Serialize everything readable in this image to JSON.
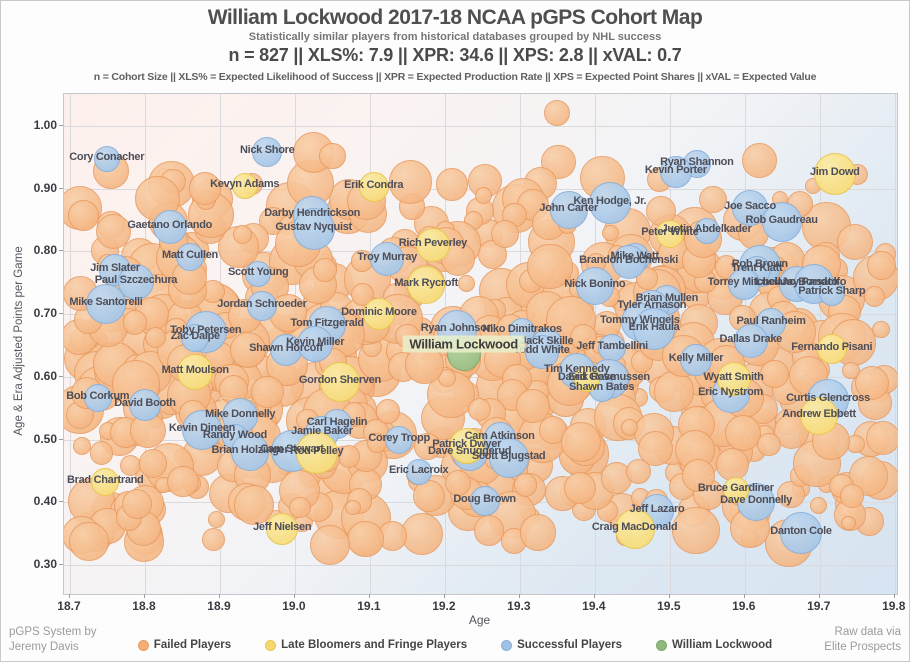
{
  "header": {
    "title": "William Lockwood 2017-18 NCAA pGPS Cohort Map",
    "subtitle": "Statistically similar players from historical databases grouped by NHL success",
    "stats": "n = 827   ||   XLS%: 7.9   ||   XPR: 34.6   ||   XPS: 2.8   ||   xVAL: 0.7",
    "definitions": "n = Cohort Size || XLS% = Expected Likelihood of Success || XPR = Expected Production Rate || XPS = Expected Point Shares || xVAL = Expected Value"
  },
  "footer": {
    "credit_left_1": "pGPS System by",
    "credit_left_2": "Jeremy Davis",
    "credit_right_1": "Raw data via",
    "credit_right_2": "Elite Prospects"
  },
  "colors": {
    "failed": {
      "light": "#f9cfa8",
      "main": "#f3ae77",
      "edge": "#e99c62"
    },
    "late_bloomer": {
      "light": "#fbeba8",
      "main": "#f6d96e",
      "edge": "#e8c64e"
    },
    "successful": {
      "light": "#c3daf0",
      "main": "#9fc2e5",
      "edge": "#8ab0da"
    },
    "subject": {
      "light": "#b4d4a3",
      "main": "#90ba7d",
      "edge": "#7ca96b"
    },
    "grid": "#d9d9de",
    "bg_gradient": [
      "#fdf0ec",
      "#faf3f1",
      "#f2f3f6",
      "#dde8f2",
      "#d7e4f1"
    ]
  },
  "chart_data": {
    "type": "scatter",
    "title": "William Lockwood 2017-18 NCAA pGPS Cohort Map",
    "subtitle": "Statistically similar players from historical databases grouped by NHL success",
    "cohort_stats": {
      "n": 827,
      "XLS_pct": 7.9,
      "XPR": 34.6,
      "XPS": 2.8,
      "xVAL": 0.7
    },
    "xlabel": "Age",
    "ylabel": "Age & Era Adjusted Points per Game",
    "x_ticks": [
      "18.7",
      "18.8",
      "18.9",
      "19.0",
      "19.1",
      "19.2",
      "19.3",
      "19.4",
      "19.5",
      "19.6",
      "19.7",
      "19.8"
    ],
    "y_ticks": [
      "0.30",
      "0.40",
      "0.50",
      "0.60",
      "0.70",
      "0.80",
      "0.90",
      "1.00"
    ],
    "xlim": [
      18.692,
      19.803
    ],
    "ylim": [
      0.254,
      1.051
    ],
    "grid": true,
    "legend_position": "bottom",
    "legend": [
      {
        "label": "Failed Players",
        "category": "failed"
      },
      {
        "label": "Late Bloomers and Fringe Players",
        "category": "late_bloomer"
      },
      {
        "label": "Successful Players",
        "category": "successful"
      },
      {
        "label": "William Lockwood",
        "category": "subject"
      }
    ],
    "point_format": [
      "name",
      "age",
      "adjusted_points_per_game"
    ],
    "series": [
      {
        "name": "Successful Players",
        "category": "successful",
        "points": [
          [
            "Cory Conacher",
            18.749,
            0.947
          ],
          [
            "Nick Shore",
            18.963,
            0.959
          ],
          [
            "Gaetano Orlando",
            18.833,
            0.839
          ],
          [
            "Darby Hendrickson",
            19.023,
            0.858
          ],
          [
            "Gustav Nyquist",
            19.025,
            0.836
          ],
          [
            "Matt Cullen",
            18.86,
            0.791
          ],
          [
            "Jim Slater",
            18.76,
            0.771
          ],
          [
            "Paul Szczechura",
            18.788,
            0.752
          ],
          [
            "Mike Santorelli",
            18.748,
            0.717
          ],
          [
            "Scott Young",
            18.951,
            0.764
          ],
          [
            "Jordan Schroeder",
            18.956,
            0.713
          ],
          [
            "Troy Murray",
            19.123,
            0.788
          ],
          [
            "John Carter",
            19.365,
            0.866
          ],
          [
            "Ken Hodge, Jr.",
            19.42,
            0.877
          ],
          [
            "Ryan Shannon",
            19.536,
            0.939
          ],
          [
            "Kevin Porter",
            19.508,
            0.927
          ],
          [
            "Joe Sacco",
            19.607,
            0.869
          ],
          [
            "Rob Gaudreau",
            19.649,
            0.847
          ],
          [
            "Justin Abdelkader",
            19.549,
            0.833
          ],
          [
            "Mike Watt",
            19.453,
            0.79
          ],
          [
            "Brandon Bochenski",
            19.445,
            0.783
          ],
          [
            "Nick Bonino",
            19.4,
            0.745
          ],
          [
            "Rob Brown",
            19.62,
            0.777
          ],
          [
            "Trent Klatt",
            19.616,
            0.771
          ],
          [
            "Torrey Mitchell",
            19.599,
            0.748
          ],
          [
            "Luciano Borsato",
            19.669,
            0.748
          ],
          [
            "Jay Pandolfo",
            19.692,
            0.748
          ],
          [
            "Patrick Sharp",
            19.716,
            0.734
          ],
          [
            "Brian Mullen",
            19.496,
            0.723
          ],
          [
            "Tyler Arnason",
            19.476,
            0.712
          ],
          [
            "Tom Fitzgerald",
            19.043,
            0.683
          ],
          [
            "Toby Petersen",
            18.881,
            0.672
          ],
          [
            "Zac Dalpe",
            18.867,
            0.662
          ],
          [
            "Shawn Horcoff",
            18.988,
            0.643
          ],
          [
            "Kevin Miller",
            19.027,
            0.653
          ],
          [
            "Ryan Johnson",
            19.216,
            0.675
          ],
          [
            "Niko Dimitrakos",
            19.303,
            0.674
          ],
          [
            "Jack Skille",
            19.336,
            0.654
          ],
          [
            "Todd White",
            19.329,
            0.64
          ],
          [
            "Tommy Wingels",
            19.46,
            0.688
          ],
          [
            "Erik Haula",
            19.479,
            0.677
          ],
          [
            "Jeff Tambellini",
            19.423,
            0.646
          ],
          [
            "Kelly Miller",
            19.535,
            0.627
          ],
          [
            "Tim Kennedy",
            19.376,
            0.61
          ],
          [
            "Erik Rasmussen",
            19.419,
            0.597
          ],
          [
            "Shawn Bates",
            19.409,
            0.58
          ],
          [
            "Paul Ranheim",
            19.635,
            0.686
          ],
          [
            "Dallas Drake",
            19.608,
            0.658
          ],
          [
            "Eric Nystrom",
            19.581,
            0.573
          ],
          [
            "Curtis Glencross",
            19.711,
            0.564
          ],
          [
            "Bob Corkum",
            18.737,
            0.567
          ],
          [
            "David Booth",
            18.8,
            0.556
          ],
          [
            "Mike Donnelly",
            18.927,
            0.537
          ],
          [
            "Kevin Dineen",
            18.876,
            0.516
          ],
          [
            "Randy Wood",
            18.92,
            0.505
          ],
          [
            "Carl Hagelin",
            19.056,
            0.525
          ],
          [
            "Jamie Baker",
            19.036,
            0.511
          ],
          [
            "Brian Holzinger",
            18.94,
            0.481
          ],
          [
            "Cam Stewart",
            18.996,
            0.482
          ],
          [
            "Corey Tropp",
            19.139,
            0.5
          ],
          [
            "Cam Atkinson",
            19.273,
            0.503
          ],
          [
            "Dave Snuggerud",
            19.233,
            0.478
          ],
          [
            "Scott Bjugstad",
            19.285,
            0.47
          ],
          [
            "Eric Lacroix",
            19.165,
            0.449
          ],
          [
            "Doug Brown",
            19.253,
            0.403
          ],
          [
            "Jeff Lazaro",
            19.483,
            0.387
          ],
          [
            "Dave Donnelly",
            19.615,
            0.401
          ],
          [
            "Danton Cole",
            19.675,
            0.352
          ]
        ]
      },
      {
        "name": "Late Bloomers and Fringe Players",
        "category": "late_bloomer",
        "points": [
          [
            "Kevyn Adams",
            18.933,
            0.904
          ],
          [
            "Erik Condra",
            19.105,
            0.903
          ],
          [
            "Rich Peverley",
            19.184,
            0.811
          ],
          [
            "Mark Rycroft",
            19.175,
            0.747
          ],
          [
            "Jim Dowd",
            19.72,
            0.924
          ],
          [
            "Peter White",
            19.5,
            0.828
          ],
          [
            "Dominic Moore",
            19.112,
            0.701
          ],
          [
            "Matt Moulson",
            18.867,
            0.608
          ],
          [
            "Gordon Sherven",
            19.06,
            0.592
          ],
          [
            "David Gove",
            19.389,
            0.597
          ],
          [
            "Fernando Pisani",
            19.716,
            0.645
          ],
          [
            "Wyatt Smith",
            19.585,
            0.596
          ],
          [
            "Andrew Ebbett",
            19.699,
            0.537
          ],
          [
            "Rod Pelley",
            19.029,
            0.478
          ],
          [
            "Brad Chartrand",
            18.747,
            0.433
          ],
          [
            "Jeff Nielsen",
            18.983,
            0.358
          ],
          [
            "Patrick Dwyer",
            19.229,
            0.49
          ],
          [
            "Craig MacDonald",
            19.453,
            0.358
          ],
          [
            "Bruce Gardiner",
            19.588,
            0.42
          ]
        ]
      },
      {
        "name": "William Lockwood",
        "category": "subject",
        "points": [
          [
            "William Lockwood",
            19.225,
            0.637
          ]
        ]
      }
    ],
    "background_cloud": {
      "description": "Failed Players (unlabeled cohort members)",
      "category": "failed",
      "count": 520,
      "low_band_count": 80,
      "seed": 7,
      "age_range": [
        18.712,
        19.788
      ],
      "ppg_range": [
        0.315,
        0.965
      ],
      "extra_points": [
        [
          19.35,
          1.02
        ],
        [
          19.05,
          0.952
        ],
        [
          18.755,
          0.928
        ],
        [
          19.62,
          0.945
        ],
        [
          18.88,
          0.9
        ]
      ]
    }
  }
}
